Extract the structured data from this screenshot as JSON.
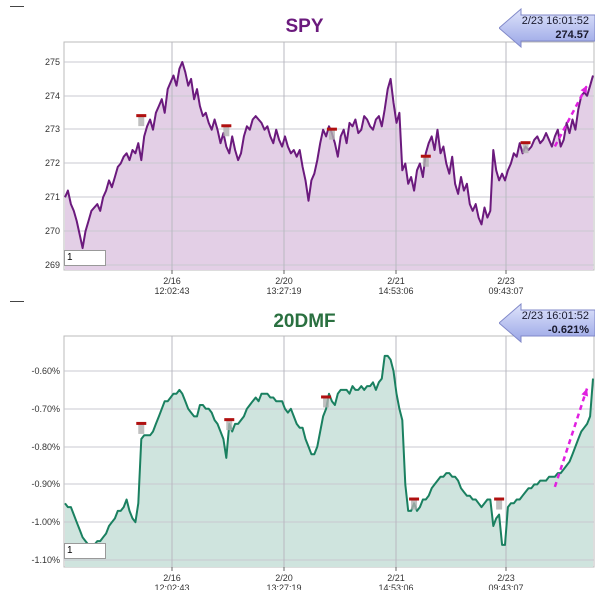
{
  "colors": {
    "spy_line": "#6b1a7d",
    "spy_fill": "#e3cfe6",
    "dmf_line": "#1a8060",
    "dmf_fill": "#cfe4de",
    "marker": "#b01010",
    "trend_arrow": "#e020e0"
  },
  "chart_data": [
    {
      "type": "area",
      "title": "SPY",
      "xlabel": "",
      "ylabel": "",
      "ylim": [
        268.8,
        275.6
      ],
      "yticks": [
        "275",
        "274",
        "273",
        "272",
        "271",
        "270",
        "269"
      ],
      "xticks": [
        {
          "date": "2/16",
          "time": "12:02:43"
        },
        {
          "date": "2/20",
          "time": "13:27:19"
        },
        {
          "date": "2/21",
          "time": "14:53:06"
        },
        {
          "date": "2/23",
          "time": "09:43:07"
        }
      ],
      "callout": {
        "date": "2/23 16:01:52",
        "value": "274.57"
      },
      "input_value": "1",
      "grid": true,
      "series": [
        {
          "values": [
            271.0,
            271.2,
            270.8,
            270.6,
            270.3,
            269.9,
            269.5,
            270.0,
            270.3,
            270.6,
            270.7,
            270.8,
            270.6,
            271.0,
            271.2,
            271.5,
            271.3,
            271.6,
            271.9,
            272.0,
            272.2,
            272.3,
            272.1,
            272.4,
            272.3,
            272.6,
            272.1,
            272.8,
            273.1,
            273.3,
            273.0,
            273.5,
            273.7,
            273.9,
            273.5,
            274.2,
            274.4,
            274.6,
            274.3,
            274.8,
            275.0,
            274.7,
            274.3,
            274.5,
            273.9,
            274.2,
            273.7,
            273.4,
            273.5,
            273.2,
            273.0,
            273.3,
            273.0,
            272.6,
            272.9,
            272.5,
            272.3,
            272.8,
            272.4,
            272.1,
            272.3,
            272.8,
            273.1,
            273.0,
            273.3,
            273.4,
            273.3,
            273.2,
            273.0,
            273.1,
            272.8,
            272.6,
            273.0,
            272.7,
            272.5,
            272.8,
            272.5,
            272.3,
            272.4,
            272.2,
            272.4,
            271.9,
            271.5,
            270.9,
            271.5,
            271.7,
            272.1,
            272.6,
            273.0,
            272.8,
            273.1,
            272.9,
            272.6,
            272.2,
            272.8,
            273.0,
            272.6,
            273.2,
            273.1,
            273.3,
            272.9,
            273.0,
            273.4,
            273.3,
            273.1,
            273.0,
            273.3,
            273.4,
            273.1,
            273.6,
            274.2,
            274.5,
            273.8,
            273.2,
            273.5,
            271.8,
            272.0,
            271.4,
            271.6,
            271.2,
            271.8,
            272.0,
            271.6,
            272.3,
            272.6,
            272.8,
            272.4,
            273.0,
            272.3,
            272.5,
            272.0,
            271.7,
            272.2,
            271.4,
            271.1,
            271.6,
            271.2,
            271.4,
            270.8,
            270.6,
            270.8,
            270.4,
            270.2,
            270.7,
            270.4,
            270.6,
            272.4,
            271.8,
            271.5,
            271.7,
            271.5,
            271.8,
            272.0,
            272.3,
            272.2,
            272.6,
            272.3,
            272.5,
            272.4,
            272.5,
            272.7,
            272.8,
            272.6,
            272.7,
            272.9,
            272.7,
            272.5,
            272.8,
            273.0,
            272.5,
            272.7,
            273.2,
            272.9,
            273.3,
            273.0,
            273.6,
            274.0,
            274.1,
            274.0,
            274.3,
            274.6
          ]
        }
      ],
      "markers": [
        {
          "x_index": 26,
          "value": 273.4
        },
        {
          "x_index": 55,
          "value": 273.1
        },
        {
          "x_index": 91,
          "value": 273.0
        },
        {
          "x_index": 123,
          "value": 272.2
        },
        {
          "x_index": 157,
          "value": 272.6
        }
      ]
    },
    {
      "type": "area",
      "title": "20DMF",
      "xlabel": "",
      "ylabel": "",
      "ylim": [
        -1.11,
        -0.54
      ],
      "yticks": [
        "-0.60%",
        "-0.70%",
        "-0.80%",
        "-0.90%",
        "-1.00%",
        "-1.10%"
      ],
      "xticks": [
        {
          "date": "2/16",
          "time": "12:02:43"
        },
        {
          "date": "2/20",
          "time": "13:27:19"
        },
        {
          "date": "2/21",
          "time": "14:53:06"
        },
        {
          "date": "2/23",
          "time": "09:43:07"
        }
      ],
      "callout": {
        "date": "2/23 16:01:52",
        "value": "-0.621%"
      },
      "input_value": "1",
      "grid": true,
      "series": [
        {
          "values": [
            -0.95,
            -0.96,
            -0.96,
            -0.98,
            -1.0,
            -1.02,
            -1.04,
            -1.05,
            -1.06,
            -1.06,
            -1.06,
            -1.05,
            -1.05,
            -1.04,
            -1.03,
            -1.01,
            -1.0,
            -0.99,
            -0.97,
            -0.97,
            -0.96,
            -0.94,
            -0.97,
            -0.99,
            -1.0,
            -0.95,
            -0.78,
            -0.77,
            -0.77,
            -0.77,
            -0.76,
            -0.74,
            -0.72,
            -0.7,
            -0.68,
            -0.68,
            -0.67,
            -0.66,
            -0.66,
            -0.65,
            -0.66,
            -0.68,
            -0.7,
            -0.71,
            -0.72,
            -0.72,
            -0.69,
            -0.69,
            -0.7,
            -0.7,
            -0.71,
            -0.73,
            -0.74,
            -0.76,
            -0.78,
            -0.83,
            -0.74,
            -0.76,
            -0.74,
            -0.74,
            -0.73,
            -0.72,
            -0.7,
            -0.69,
            -0.68,
            -0.67,
            -0.68,
            -0.66,
            -0.66,
            -0.66,
            -0.67,
            -0.67,
            -0.68,
            -0.68,
            -0.68,
            -0.7,
            -0.71,
            -0.7,
            -0.72,
            -0.74,
            -0.75,
            -0.75,
            -0.78,
            -0.8,
            -0.82,
            -0.82,
            -0.8,
            -0.76,
            -0.72,
            -0.7,
            -0.66,
            -0.68,
            -0.69,
            -0.66,
            -0.65,
            -0.65,
            -0.65,
            -0.66,
            -0.64,
            -0.65,
            -0.65,
            -0.64,
            -0.65,
            -0.64,
            -0.64,
            -0.63,
            -0.65,
            -0.63,
            -0.62,
            -0.56,
            -0.56,
            -0.57,
            -0.6,
            -0.66,
            -0.7,
            -0.73,
            -0.9,
            -0.97,
            -0.97,
            -0.95,
            -0.97,
            -0.96,
            -0.94,
            -0.94,
            -0.93,
            -0.91,
            -0.9,
            -0.89,
            -0.88,
            -0.88,
            -0.87,
            -0.87,
            -0.88,
            -0.88,
            -0.89,
            -0.91,
            -0.92,
            -0.93,
            -0.93,
            -0.94,
            -0.94,
            -0.95,
            -0.96,
            -0.95,
            -0.94,
            -0.94,
            -1.01,
            -0.99,
            -0.98,
            -1.06,
            -1.06,
            -0.96,
            -0.95,
            -0.95,
            -0.94,
            -0.94,
            -0.93,
            -0.92,
            -0.91,
            -0.91,
            -0.9,
            -0.9,
            -0.89,
            -0.89,
            -0.89,
            -0.88,
            -0.88,
            -0.88,
            -0.87,
            -0.87,
            -0.86,
            -0.85,
            -0.84,
            -0.82,
            -0.8,
            -0.78,
            -0.76,
            -0.75,
            -0.74,
            -0.72,
            -0.62
          ]
        }
      ],
      "markers": [
        {
          "x_index": 26,
          "value": -0.74
        },
        {
          "x_index": 56,
          "value": -0.73
        },
        {
          "x_index": 89,
          "value": -0.67
        },
        {
          "x_index": 119,
          "value": -0.94
        },
        {
          "x_index": 148,
          "value": -0.94
        }
      ]
    }
  ]
}
